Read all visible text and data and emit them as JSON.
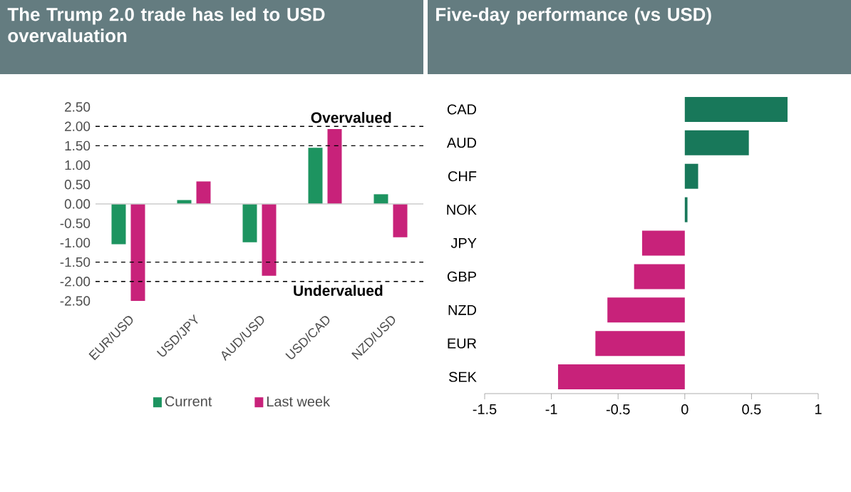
{
  "chart_data": [
    {
      "type": "bar",
      "title": "The Trump 2.0 trade has led to USD overvaluation",
      "categories": [
        "EUR/USD",
        "USD/JPY",
        "AUD/USD",
        "USD/CAD",
        "NZD/USD"
      ],
      "series": [
        {
          "name": "Current",
          "color": "#1d9460",
          "values": [
            -1.04,
            0.1,
            -0.99,
            1.45,
            0.25
          ]
        },
        {
          "name": "Last week",
          "color": "#c8227a",
          "values": [
            -2.5,
            0.58,
            -1.85,
            1.93,
            -0.86
          ]
        }
      ],
      "ylim": [
        -2.5,
        2.5
      ],
      "yticks": [
        {
          "value": -2.5,
          "label": "-2.50"
        },
        {
          "value": -2,
          "label": "-2.00"
        },
        {
          "value": -1.5,
          "label": "-1.50"
        },
        {
          "value": -1,
          "label": "-1.00"
        },
        {
          "value": -0.5,
          "label": "-0.50"
        },
        {
          "value": 0,
          "label": "0.00"
        },
        {
          "value": 0.5,
          "label": "0.50"
        },
        {
          "value": 1,
          "label": "1.00"
        },
        {
          "value": 1.5,
          "label": "1.50"
        },
        {
          "value": 2,
          "label": "2.00"
        },
        {
          "value": 2.5,
          "label": "2.50"
        }
      ],
      "ref_lines": [
        {
          "axis": "y",
          "value": 2,
          "color": "#000000",
          "line_style": "dashed"
        },
        {
          "axis": "y",
          "value": 1.5,
          "color": "#000000",
          "line_style": "dashed"
        },
        {
          "axis": "y",
          "value": -1.5,
          "color": "#000000",
          "line_style": "dashed"
        },
        {
          "axis": "y",
          "value": -2,
          "color": "#000000",
          "line_style": "dashed"
        }
      ],
      "annotations": [
        "Overvalued",
        "Undervalued"
      ],
      "legend": "bottom"
    },
    {
      "type": "bar",
      "title": "Five-day performance (vs USD)",
      "orientation": "horizontal",
      "categories": [
        "CAD",
        "AUD",
        "CHF",
        "NOK",
        "JPY",
        "GBP",
        "NZD",
        "EUR",
        "SEK"
      ],
      "values": [
        0.77,
        0.48,
        0.1,
        0.02,
        -0.32,
        -0.38,
        -0.58,
        -0.67,
        -0.95
      ],
      "colors": [
        "#18785a",
        "#18785a",
        "#18785a",
        "#18785a",
        "#c8227a",
        "#c8227a",
        "#c8227a",
        "#c8227a",
        "#c8227a"
      ],
      "xlim": [
        -1.5,
        1
      ],
      "xticks": [
        {
          "value": -1.5,
          "label": "-1.5"
        },
        {
          "value": -1,
          "label": "-1"
        },
        {
          "value": -0.5,
          "label": "-0.5"
        },
        {
          "value": 0,
          "label": "0"
        },
        {
          "value": 0.5,
          "label": "0.5"
        },
        {
          "value": 1,
          "label": "1"
        }
      ]
    }
  ]
}
